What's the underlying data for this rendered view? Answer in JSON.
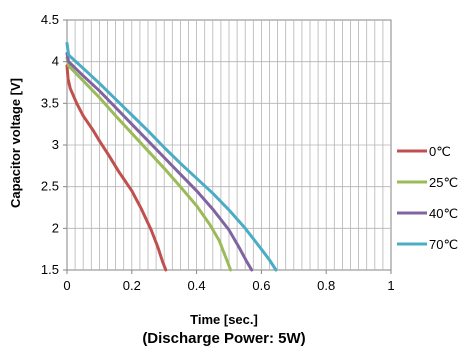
{
  "chart_data": {
    "type": "line",
    "xlabel": "Time [sec.]",
    "ylabel": "Capacitor voltage [V]",
    "subtitle": "(Discharge Power: 5W)",
    "xlim": [
      0,
      1
    ],
    "ylim": [
      1.5,
      4.5
    ],
    "x_ticks": [
      "0",
      "0.2",
      "0.4",
      "0.6",
      "0.8",
      "1"
    ],
    "y_ticks": [
      "1.5",
      "2",
      "2.5",
      "3",
      "3.5",
      "4",
      "4.5"
    ],
    "x_minor_step": 0.025,
    "y_major_step": 0.5,
    "grid": true,
    "legend_position": "right",
    "series": [
      {
        "name": "0℃",
        "color": "#c0504d",
        "points": [
          [
            0,
            3.95
          ],
          [
            0.003,
            3.8
          ],
          [
            0.01,
            3.68
          ],
          [
            0.03,
            3.5
          ],
          [
            0.05,
            3.35
          ],
          [
            0.08,
            3.18
          ],
          [
            0.1,
            3.05
          ],
          [
            0.13,
            2.87
          ],
          [
            0.16,
            2.68
          ],
          [
            0.2,
            2.45
          ],
          [
            0.23,
            2.23
          ],
          [
            0.26,
            1.98
          ],
          [
            0.28,
            1.78
          ],
          [
            0.295,
            1.6
          ],
          [
            0.305,
            1.5
          ]
        ]
      },
      {
        "name": "25℃",
        "color": "#9bbb59",
        "points": [
          [
            0,
            4.05
          ],
          [
            0.005,
            3.95
          ],
          [
            0.05,
            3.77
          ],
          [
            0.1,
            3.57
          ],
          [
            0.15,
            3.35
          ],
          [
            0.2,
            3.14
          ],
          [
            0.25,
            2.93
          ],
          [
            0.3,
            2.72
          ],
          [
            0.35,
            2.5
          ],
          [
            0.4,
            2.27
          ],
          [
            0.44,
            2.05
          ],
          [
            0.47,
            1.85
          ],
          [
            0.49,
            1.65
          ],
          [
            0.505,
            1.5
          ]
        ]
      },
      {
        "name": "40℃",
        "color": "#8064a2",
        "points": [
          [
            0,
            4.1
          ],
          [
            0.005,
            4.0
          ],
          [
            0.05,
            3.83
          ],
          [
            0.1,
            3.65
          ],
          [
            0.15,
            3.45
          ],
          [
            0.2,
            3.25
          ],
          [
            0.25,
            3.05
          ],
          [
            0.3,
            2.85
          ],
          [
            0.35,
            2.65
          ],
          [
            0.4,
            2.45
          ],
          [
            0.45,
            2.23
          ],
          [
            0.5,
            1.98
          ],
          [
            0.53,
            1.78
          ],
          [
            0.555,
            1.6
          ],
          [
            0.57,
            1.5
          ]
        ]
      },
      {
        "name": "70℃",
        "color": "#4bacc6",
        "points": [
          [
            0,
            4.22
          ],
          [
            0.005,
            4.08
          ],
          [
            0.05,
            3.92
          ],
          [
            0.1,
            3.74
          ],
          [
            0.15,
            3.55
          ],
          [
            0.2,
            3.36
          ],
          [
            0.25,
            3.17
          ],
          [
            0.3,
            2.97
          ],
          [
            0.35,
            2.78
          ],
          [
            0.4,
            2.6
          ],
          [
            0.45,
            2.42
          ],
          [
            0.5,
            2.22
          ],
          [
            0.55,
            2.0
          ],
          [
            0.6,
            1.75
          ],
          [
            0.625,
            1.62
          ],
          [
            0.645,
            1.5
          ]
        ]
      }
    ]
  }
}
